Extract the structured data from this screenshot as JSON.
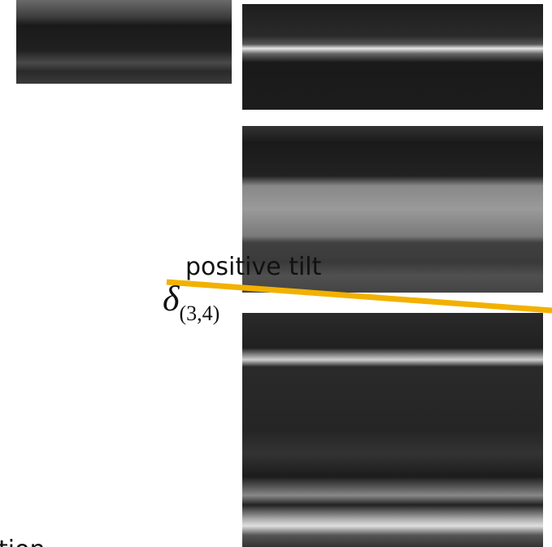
{
  "label": "positive tilt",
  "symbol": {
    "base": "δ",
    "subscript": "(3,4)"
  },
  "partial_text": "tion"
}
